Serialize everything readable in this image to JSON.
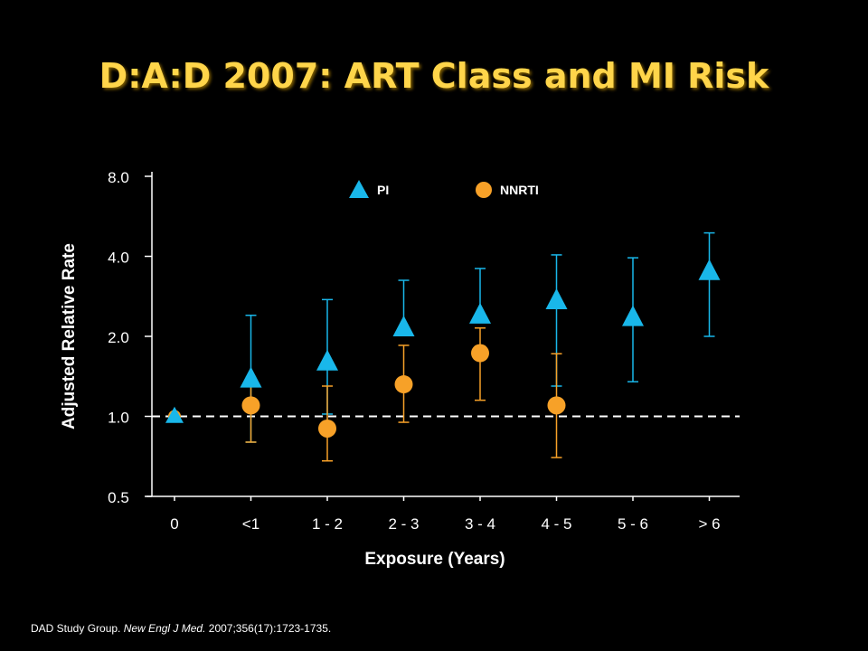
{
  "slide": {
    "title": "D:A:D 2007: ART Class and MI Risk",
    "citation_part1": "DAD Study Group.",
    "citation_journal": "New Engl J Med.",
    "citation_part2": "2007;356(17):1723-1735."
  },
  "colors": {
    "background": "#000000",
    "title": "#ffd54a",
    "pi": "#19b7ea",
    "nnrti": "#f7a128",
    "axis_text": "#ffffff",
    "reference_line": "#ffffff"
  },
  "chart_data": {
    "type": "scatter",
    "title": "",
    "xlabel": "Exposure (Years)",
    "ylabel": "Adjusted Relative Rate",
    "y_scale": "log2",
    "ylim": [
      0.5,
      8.0
    ],
    "y_ticks": [
      "0.5",
      "1.0",
      "2.0",
      "4.0",
      "8.0"
    ],
    "categories": [
      "0",
      "<1",
      "1 - 2",
      "2 - 3",
      "3 - 4",
      "4 - 5",
      "5 - 6",
      "> 6"
    ],
    "reference_line": 1.0,
    "legend_position": "top",
    "grid": false,
    "series": [
      {
        "name": "PI",
        "marker": "triangle",
        "color": "#19b7ea",
        "values": [
          1.0,
          1.38,
          1.6,
          2.15,
          2.4,
          2.72,
          2.35,
          3.5
        ],
        "ci_low": [
          null,
          0.8,
          1.02,
          null,
          null,
          1.3,
          1.35,
          2.0
        ],
        "ci_high": [
          null,
          2.4,
          2.75,
          3.25,
          3.6,
          4.05,
          3.95,
          4.9
        ]
      },
      {
        "name": "NNRTI",
        "marker": "circle",
        "color": "#f7a128",
        "values": [
          1.0,
          1.1,
          0.9,
          1.32,
          1.73,
          1.1,
          null,
          null
        ],
        "ci_low": [
          null,
          0.8,
          0.68,
          0.95,
          1.15,
          0.7,
          null,
          null
        ],
        "ci_high": [
          null,
          1.4,
          1.3,
          1.85,
          2.15,
          1.72,
          null,
          null
        ]
      }
    ]
  }
}
